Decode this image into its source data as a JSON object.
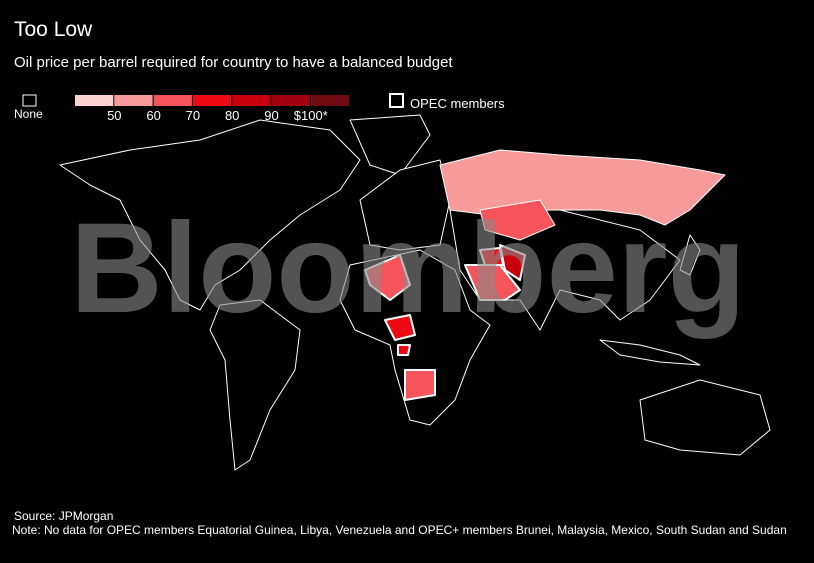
{
  "header": {
    "title": "Too Low",
    "subtitle": "Oil price per barrel required for country to have a balanced budget"
  },
  "legend": {
    "none_label": "None",
    "opec_label": "OPEC members",
    "colors": [
      "#fbd0d0",
      "#f79a9a",
      "#f5545a",
      "#ee0a14",
      "#c8000e",
      "#a00010",
      "#6e0a12"
    ],
    "ticks": [
      50,
      60,
      70,
      80,
      90,
      {
        "value": 100,
        "label": "$100*"
      }
    ]
  },
  "watermark": "Bloomberg",
  "footer": {
    "source": "Source: JPMorgan",
    "note": "Note: No data for OPEC members Equatorial Guinea, Libya, Venezuela and OPEC+ members Brunei, Malaysia, Mexico, South Sudan and Sudan"
  }
}
